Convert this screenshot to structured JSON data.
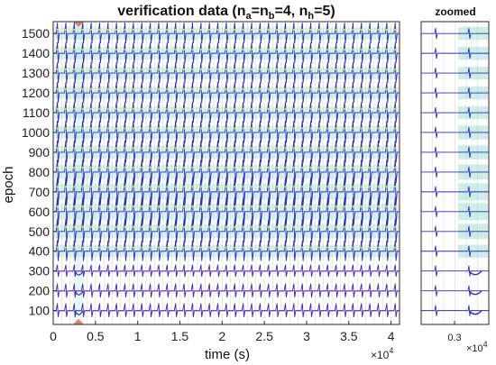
{
  "chart_data": [
    {
      "type": "line",
      "title_parts": {
        "prefix": "verification  data  (n",
        "a": "a",
        "eq1": "=n",
        "b": "b",
        "eq2": "=4,  n",
        "h": "h",
        "eq3": "=5)"
      },
      "xlabel": "time (s)",
      "ylabel": "epoch",
      "xlim": [
        0,
        41000
      ],
      "ylim": [
        30,
        1560
      ],
      "x_ticks": [
        0,
        5000,
        10000,
        15000,
        20000,
        25000,
        30000,
        35000,
        40000
      ],
      "x_tick_labels": [
        "0",
        "0.5",
        "1",
        "1.5",
        "2",
        "2.5",
        "3",
        "3.5",
        "4"
      ],
      "x_multiplier_base": "×10",
      "x_multiplier_exp": "4",
      "y_ticks": [
        100,
        200,
        300,
        400,
        500,
        600,
        700,
        800,
        900,
        1000,
        1100,
        1200,
        1300,
        1400,
        1500
      ],
      "y_tick_labels": [
        "100",
        "200",
        "300",
        "400",
        "500",
        "600",
        "700",
        "800",
        "900",
        "1000",
        "1100",
        "1200",
        "1300",
        "1400",
        "1500"
      ],
      "grid": true,
      "series": [
        {
          "epoch": 100,
          "spike_amplitude": 8,
          "style": "flat"
        },
        {
          "epoch": 200,
          "spike_amplitude": 8,
          "style": "flat"
        },
        {
          "epoch": 300,
          "spike_amplitude": 7,
          "style": "flat"
        },
        {
          "epoch": 400,
          "spike_amplitude": 12,
          "style": "spiky"
        },
        {
          "epoch": 500,
          "spike_amplitude": 14,
          "style": "spiky"
        },
        {
          "epoch": 600,
          "spike_amplitude": 16,
          "style": "spiky"
        },
        {
          "epoch": 700,
          "spike_amplitude": 16,
          "style": "spiky"
        },
        {
          "epoch": 800,
          "spike_amplitude": 14,
          "style": "spiky"
        },
        {
          "epoch": 900,
          "spike_amplitude": 13,
          "style": "spiky"
        },
        {
          "epoch": 1000,
          "spike_amplitude": 13,
          "style": "spiky"
        },
        {
          "epoch": 1100,
          "spike_amplitude": 12,
          "style": "spiky"
        },
        {
          "epoch": 1200,
          "spike_amplitude": 12,
          "style": "spiky"
        },
        {
          "epoch": 1300,
          "spike_amplitude": 12,
          "style": "spiky"
        },
        {
          "epoch": 1400,
          "spike_amplitude": 12,
          "style": "spiky"
        },
        {
          "epoch": 1500,
          "spike_amplitude": 12,
          "style": "spiky"
        }
      ],
      "highlight_x": 3000,
      "colors": {
        "trace": "#2c2cc8",
        "envelope": "#8fd9c8",
        "envelope_top": "#c8dc3c",
        "magenta": "#c040c0",
        "grid": "#d9d9d9",
        "marker": "#e08060"
      }
    },
    {
      "type": "line",
      "title": "zoomed",
      "x_tick_labels": [
        "0.3"
      ],
      "x_multiplier_base": "×10",
      "x_multiplier_exp": "4",
      "grid": true
    }
  ]
}
